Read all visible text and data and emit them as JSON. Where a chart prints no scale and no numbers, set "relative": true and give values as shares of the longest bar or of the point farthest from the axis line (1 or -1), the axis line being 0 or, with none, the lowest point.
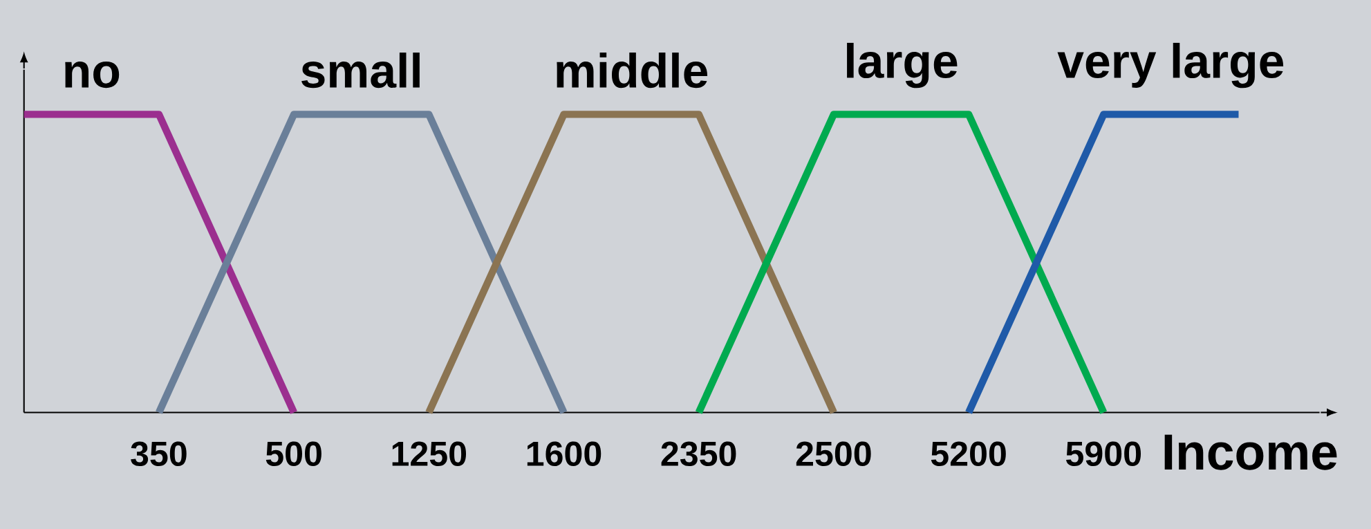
{
  "chart_data": {
    "type": "line",
    "relative": true,
    "xlabel": "Income",
    "legend": false,
    "grid": false,
    "marker": "none",
    "categories": [
      null,
      "350",
      "500",
      "1250",
      "1600",
      "2350",
      "2500",
      "5200",
      "5900",
      null
    ],
    "series": [
      {
        "name": "no",
        "color": "#9b2f8f",
        "values": [
          1,
          1,
          0,
          null,
          null,
          null,
          null,
          null,
          null,
          null
        ]
      },
      {
        "name": "small",
        "color": "#6a7f99",
        "values": [
          null,
          0,
          1,
          1,
          0,
          null,
          null,
          null,
          null,
          null
        ]
      },
      {
        "name": "middle",
        "color": "#8b7452",
        "values": [
          null,
          null,
          null,
          0,
          1,
          1,
          0,
          null,
          null,
          null
        ]
      },
      {
        "name": "large",
        "color": "#00aa4f",
        "values": [
          null,
          null,
          null,
          null,
          null,
          0,
          1,
          1,
          0,
          null
        ]
      },
      {
        "name": "very large",
        "color": "#1f5aa8",
        "values": [
          null,
          null,
          null,
          null,
          null,
          null,
          null,
          0,
          1,
          1
        ]
      }
    ]
  }
}
